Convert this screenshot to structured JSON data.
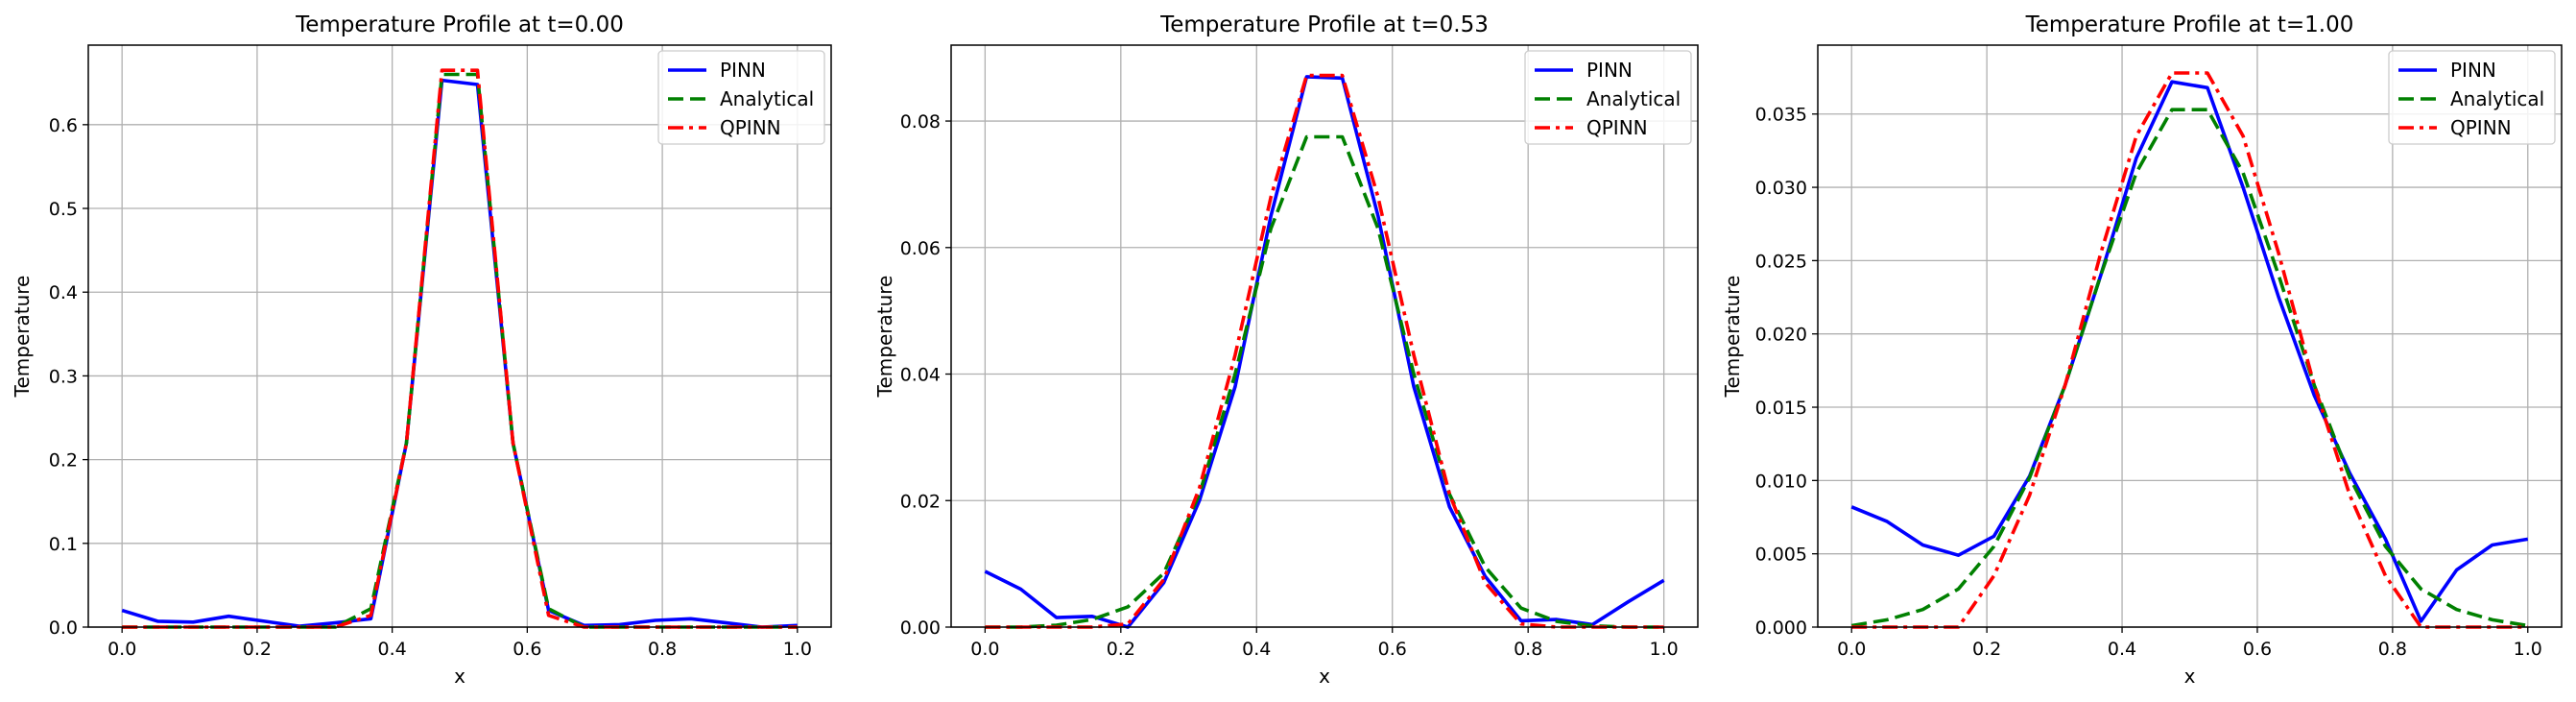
{
  "chart_data": [
    {
      "type": "line",
      "title": "Temperature Profile at t=0.00",
      "xlabel": "x",
      "ylabel": "Temperature",
      "xlim": [
        -0.05,
        1.05
      ],
      "ylim": [
        0,
        0.695
      ],
      "xticks": [
        "0.0",
        "0.2",
        "0.4",
        "0.6",
        "0.8",
        "1.0"
      ],
      "yticks": [
        "0.0",
        "0.1",
        "0.2",
        "0.3",
        "0.4",
        "0.5",
        "0.6"
      ],
      "grid": true,
      "legend_position": "top-right",
      "x": [
        0.0,
        0.0526,
        0.1053,
        0.1579,
        0.2105,
        0.2632,
        0.3158,
        0.3684,
        0.4211,
        0.4737,
        0.5263,
        0.5789,
        0.6316,
        0.6842,
        0.7368,
        0.7895,
        0.8421,
        0.8947,
        0.9474,
        1.0
      ],
      "series": [
        {
          "name": "PINN",
          "color": "#0000ff",
          "dash": "solid",
          "values": [
            0.02,
            0.007,
            0.006,
            0.013,
            0.007,
            0.001,
            0.005,
            0.01,
            0.22,
            0.653,
            0.648,
            0.22,
            0.02,
            0.002,
            0.003,
            0.008,
            0.01,
            0.005,
            0.0,
            0.002
          ]
        },
        {
          "name": "Analytical",
          "color": "#008000",
          "dash": "dashed",
          "values": [
            0.0,
            0.0,
            0.0,
            0.0,
            0.0,
            0.0,
            0.0,
            0.022,
            0.22,
            0.66,
            0.66,
            0.22,
            0.022,
            0.0,
            0.0,
            0.0,
            0.0,
            0.0,
            0.0,
            0.0
          ]
        },
        {
          "name": "QPINN",
          "color": "#ff0000",
          "dash": "dashdot",
          "values": [
            0.0,
            0.0,
            0.0,
            0.0,
            0.0,
            0.0,
            0.0,
            0.014,
            0.22,
            0.665,
            0.665,
            0.22,
            0.014,
            0.0,
            0.0,
            0.0,
            0.0,
            0.0,
            0.0,
            0.0
          ]
        }
      ]
    },
    {
      "type": "line",
      "title": "Temperature Profile at t=0.53",
      "xlabel": "x",
      "ylabel": "Temperature",
      "xlim": [
        -0.05,
        1.05
      ],
      "ylim": [
        0,
        0.092
      ],
      "xticks": [
        "0.0",
        "0.2",
        "0.4",
        "0.6",
        "0.8",
        "1.0"
      ],
      "yticks": [
        "0.00",
        "0.02",
        "0.04",
        "0.06",
        "0.08"
      ],
      "grid": true,
      "legend_position": "top-right",
      "x": [
        0.0,
        0.0526,
        0.1053,
        0.1579,
        0.2105,
        0.2632,
        0.3158,
        0.3684,
        0.4211,
        0.4737,
        0.5263,
        0.5789,
        0.6316,
        0.6842,
        0.7368,
        0.7895,
        0.8421,
        0.8947,
        0.9474,
        1.0
      ],
      "series": [
        {
          "name": "PINN",
          "color": "#0000ff",
          "dash": "solid",
          "values": [
            0.0088,
            0.006,
            0.0015,
            0.0017,
            0.0,
            0.007,
            0.02,
            0.038,
            0.065,
            0.087,
            0.0868,
            0.065,
            0.038,
            0.019,
            0.008,
            0.001,
            0.0012,
            0.0004,
            0.004,
            0.0074
          ]
        },
        {
          "name": "Analytical",
          "color": "#008000",
          "dash": "dashed",
          "values": [
            0.0,
            0.0,
            0.0003,
            0.0012,
            0.0032,
            0.0085,
            0.021,
            0.04,
            0.063,
            0.0775,
            0.0775,
            0.063,
            0.04,
            0.021,
            0.0095,
            0.003,
            0.0009,
            0.0002,
            0.0,
            0.0
          ]
        },
        {
          "name": "QPINN",
          "color": "#ff0000",
          "dash": "dashdot",
          "values": [
            0.0,
            0.0,
            0.0,
            0.0,
            0.0005,
            0.0075,
            0.022,
            0.043,
            0.068,
            0.0872,
            0.0872,
            0.068,
            0.043,
            0.021,
            0.007,
            0.0005,
            0.0,
            0.0,
            0.0,
            0.0
          ]
        }
      ]
    },
    {
      "type": "line",
      "title": "Temperature Profile at t=1.00",
      "xlabel": "x",
      "ylabel": "Temperature",
      "xlim": [
        -0.05,
        1.05
      ],
      "ylim": [
        0,
        0.0397
      ],
      "xticks": [
        "0.0",
        "0.2",
        "0.4",
        "0.6",
        "0.8",
        "1.0"
      ],
      "yticks": [
        "0.000",
        "0.005",
        "0.010",
        "0.015",
        "0.020",
        "0.025",
        "0.030",
        "0.035"
      ],
      "grid": true,
      "legend_position": "top-right",
      "x": [
        0.0,
        0.0526,
        0.1053,
        0.1579,
        0.2105,
        0.2632,
        0.3158,
        0.3684,
        0.4211,
        0.4737,
        0.5263,
        0.5789,
        0.6316,
        0.6842,
        0.7368,
        0.7895,
        0.8421,
        0.8947,
        0.9474,
        1.0
      ],
      "series": [
        {
          "name": "PINN",
          "color": "#0000ff",
          "dash": "solid",
          "values": [
            0.0082,
            0.0072,
            0.0056,
            0.0049,
            0.0062,
            0.0103,
            0.0165,
            0.024,
            0.032,
            0.0372,
            0.0368,
            0.03,
            0.0225,
            0.0158,
            0.0105,
            0.006,
            0.0004,
            0.0039,
            0.0056,
            0.006
          ]
        },
        {
          "name": "Analytical",
          "color": "#008000",
          "dash": "dashed",
          "values": [
            0.0001,
            0.0005,
            0.0012,
            0.0026,
            0.0055,
            0.0102,
            0.0165,
            0.024,
            0.031,
            0.0353,
            0.0353,
            0.031,
            0.024,
            0.0165,
            0.0102,
            0.0055,
            0.0026,
            0.0012,
            0.0005,
            0.0001
          ]
        },
        {
          "name": "QPINN",
          "color": "#ff0000",
          "dash": "dashdot",
          "values": [
            0.0,
            0.0,
            0.0,
            0.0,
            0.0035,
            0.009,
            0.0165,
            0.0255,
            0.0335,
            0.0378,
            0.0378,
            0.0335,
            0.0255,
            0.0165,
            0.009,
            0.0035,
            0.0,
            0.0,
            0.0,
            0.0
          ]
        }
      ]
    }
  ]
}
